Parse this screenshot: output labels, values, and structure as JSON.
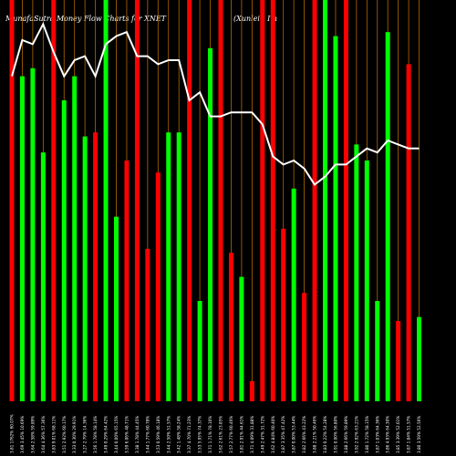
{
  "header": {
    "left_title": "MunafaSutra  Money Flow  Charts for XNET",
    "right_title": "(Xunlei    ) Im"
  },
  "chart_data": {
    "type": "bar",
    "title": "MunafaSutra Money Flow Charts for XNET",
    "subtitle": "(Xunlei ) Im",
    "ylim": [
      0,
      100
    ],
    "grid": false,
    "colors": {
      "up": "#00ff00",
      "down": "#ff0000",
      "line": "#ffffff",
      "separator": "#b36a00",
      "background": "#000000"
    },
    "categories": [
      "Tue 14 Jan 2025",
      "Mon 13 Jan 2025",
      "Fri 10 Jan 2025",
      "Wed 08 Jan 2025",
      "Tue 07 Jan 2025",
      "Mon 06 Jan 2025",
      "Fri 03 Jan 2025",
      "Thu 02 Jan 2025",
      "Tue 31 Dec 2024",
      "Mon 30 Dec 2024",
      "Fri 27 Dec 2024",
      "Thu 26 Dec 2024",
      "Tue 24 Dec 2024",
      "Mon 23 Dec 2024",
      "Fri 20 Dec 2024",
      "Thu 19 Dec 2024",
      "Wed 18 Dec 2024",
      "Tue 17 Dec 2024",
      "Mon 16 Dec 2024",
      "Fri 13 Dec 2024",
      "Thu 12 Dec 2024",
      "Wed 11 Dec 2024",
      "Tue 10 Dec 2024",
      "Mon 09 Dec 2024",
      "Fri 06 Dec 2024",
      "Thu 05 Dec 2024",
      "Wed 04 Dec 2024",
      "Tue 03 Dec 2024",
      "Mon 02 Dec 2024",
      "Fri 29 Nov 2024",
      "Wed 27 Nov 2024",
      "Tue 26 Nov 2024",
      "Mon 25 Nov 2024",
      "Fri 22 Nov 2024",
      "Thu 21 Nov 2024",
      "Wed 20 Nov 2024",
      "Tue 19 Nov 2024",
      "Mon 18 Nov 2024",
      "Fri 15 Nov 2024",
      "Thu 14 Nov 2024"
    ],
    "tick_labels": [
      "3.81 1762% 60.07%",
      "3.69 3.45% 10.69%",
      "3.64 2.58% 59.89%",
      "3.64 4.36% 57.36%",
      "3.83 9.01% 68.11%",
      "3.51 2.92% 60.17%",
      "3.33 0.30% 29.91%",
      "3.27 2.79% 14.36%",
      "3.56 1.78% 58.14%",
      "3.49 0.29% 64.42%",
      "3.44 0.00% 65.15%",
      "3.59 6.06% 48.71%",
      "3.38 1.78% 44.45%",
      "3.44 1.77% 60.78%",
      "3.53 0.59% 46.18%",
      "3.44 2.50% 51.57%",
      "3.42 1.48% 58.24%",
      "3.37 4.70% 71.23%",
      "3.53 5.95% 74.37%",
      "3.71 1.71% 78.10%",
      "3.62 2.61% 23.85%",
      "3.57 2.77% 60.46%",
      "3.81 2.91% 44.61%",
      "3.71 4.09% 31.88%",
      "3.49 2.47% 31.72%",
      "3.62 4.84% 60.40%",
      "3.87 3.35% 47.42%",
      "3.87 0.00% 53.44%",
      "3.82 2.66% 43.22%",
      "3.88 2.21% 50.46%",
      "3.83 0.22% 54.28%",
      "3.91 0.00% 56.80%",
      "3.88 2.66% 59.89%",
      "3.92 2.92% 63.21%",
      "3.80 1.72% 58.15%",
      "3.87 1.03% 64.36%",
      "3.86 4.93% 64.30%",
      "3.85 3.39% 52.01%",
      "3.87 1.84% 51.57%",
      "3.80 3.59% 52.56%"
    ],
    "series": [
      {
        "type": "bar",
        "values": [
          100,
          81,
          83,
          62,
          100,
          75,
          81,
          66,
          67,
          100,
          46,
          60,
          100,
          38,
          57,
          67,
          67,
          100,
          25,
          88,
          100,
          37,
          31,
          5,
          100,
          100,
          43,
          53,
          27,
          100,
          100,
          91,
          100,
          64,
          60,
          25,
          92,
          20,
          84,
          21
        ],
        "directions": [
          "down",
          "up",
          "up",
          "up",
          "down",
          "up",
          "up",
          "up",
          "down",
          "up",
          "up",
          "down",
          "down",
          "down",
          "down",
          "up",
          "up",
          "down",
          "up",
          "up",
          "down",
          "down",
          "up",
          "down",
          "down",
          "down",
          "down",
          "up",
          "down",
          "down",
          "up",
          "up",
          "down",
          "up",
          "up",
          "up",
          "up",
          "down",
          "down",
          "up"
        ]
      },
      {
        "type": "line",
        "values": [
          81,
          90,
          89,
          94,
          87,
          81,
          85,
          86,
          81,
          89,
          91,
          92,
          86,
          86,
          84,
          85,
          85,
          75,
          77,
          71,
          71,
          72,
          72,
          72,
          69,
          61,
          59,
          60,
          58,
          54,
          56,
          59,
          59,
          61,
          63,
          62,
          65,
          64,
          63,
          63
        ]
      }
    ]
  }
}
